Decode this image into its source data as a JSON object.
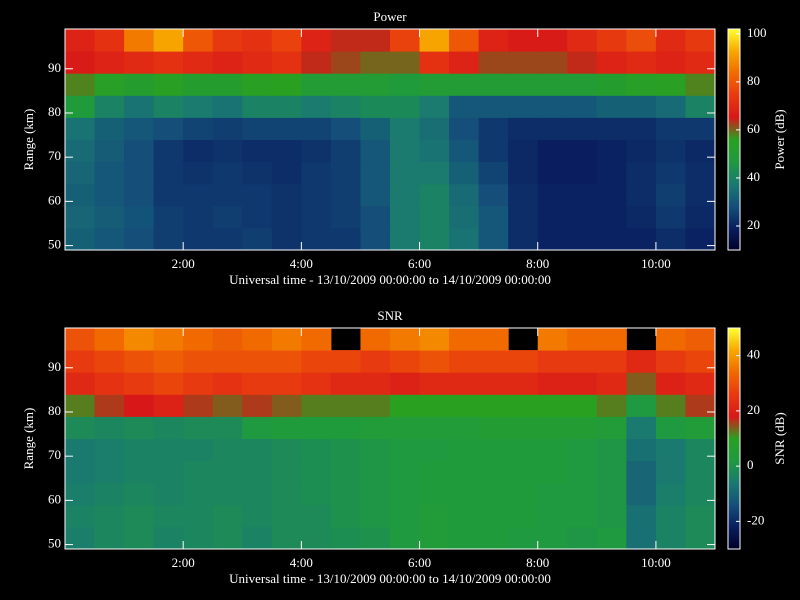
{
  "chart_data": [
    {
      "type": "heatmap",
      "title": "Power",
      "x_label": "Universal time - 13/10/2009 00:00:00 to 14/10/2009 00:00:00",
      "y_label": "Range (km)",
      "x": [
        0.25,
        0.75,
        1.25,
        1.75,
        2.25,
        2.75,
        3.25,
        3.75,
        4.25,
        4.75,
        5.25,
        5.75,
        6.25,
        6.75,
        7.25,
        7.75,
        8.25,
        8.75,
        9.25,
        9.75,
        10.25,
        10.75
      ],
      "y": [
        51.5,
        56.5,
        61.5,
        66.5,
        71.5,
        76.5,
        81.5,
        86.5,
        91.5,
        96.5
      ],
      "z": [
        [
          32,
          30,
          28,
          25,
          24,
          24,
          25,
          23,
          24,
          24,
          28,
          38,
          40,
          36,
          30,
          22,
          20,
          20,
          20,
          20,
          22,
          20
        ],
        [
          33,
          31,
          29,
          25,
          24,
          25,
          24,
          23,
          24,
          25,
          28,
          38,
          40,
          35,
          30,
          22,
          20,
          20,
          20,
          21,
          24,
          21
        ],
        [
          32,
          30,
          28,
          24,
          24,
          24,
          24,
          23,
          24,
          25,
          30,
          38,
          40,
          34,
          28,
          22,
          20,
          20,
          20,
          22,
          25,
          22
        ],
        [
          33,
          30,
          28,
          24,
          23,
          24,
          23,
          22,
          24,
          25,
          30,
          38,
          38,
          32,
          26,
          21,
          19,
          19,
          20,
          22,
          24,
          22
        ],
        [
          34,
          31,
          28,
          24,
          22,
          23,
          22,
          22,
          23,
          25,
          30,
          38,
          36,
          30,
          24,
          21,
          19,
          19,
          20,
          21,
          23,
          21
        ],
        [
          36,
          32,
          30,
          28,
          26,
          25,
          26,
          26,
          26,
          28,
          32,
          38,
          35,
          28,
          24,
          22,
          22,
          22,
          22,
          22,
          24,
          24
        ],
        [
          48,
          40,
          36,
          40,
          38,
          36,
          40,
          40,
          38,
          40,
          42,
          42,
          38,
          30,
          30,
          30,
          30,
          30,
          32,
          32,
          34,
          40
        ],
        [
          58,
          54,
          52,
          55,
          52,
          52,
          55,
          56,
          50,
          50,
          50,
          48,
          50,
          50,
          50,
          50,
          50,
          50,
          52,
          54,
          55,
          58
        ],
        [
          66,
          68,
          70,
          72,
          70,
          68,
          70,
          72,
          64,
          62,
          60,
          60,
          72,
          68,
          62,
          62,
          62,
          64,
          68,
          70,
          68,
          70
        ],
        [
          68,
          72,
          86,
          92,
          80,
          74,
          72,
          76,
          68,
          64,
          64,
          76,
          92,
          80,
          68,
          66,
          66,
          70,
          74,
          78,
          70,
          74
        ]
      ],
      "xlim": [
        0,
        11
      ],
      "xticks": [
        {
          "value": 2,
          "label": "2:00"
        },
        {
          "value": 4,
          "label": "4:00"
        },
        {
          "value": 6,
          "label": "6:00"
        },
        {
          "value": 8,
          "label": "8:00"
        },
        {
          "value": 10,
          "label": "10:00"
        }
      ],
      "ylim": [
        49,
        99
      ],
      "yticks": [
        50,
        60,
        70,
        80,
        90
      ],
      "colorbar": {
        "label": "Power (dB)",
        "clim": [
          10,
          102
        ],
        "ticks": [
          20,
          40,
          60,
          80,
          100
        ]
      },
      "colorscale": [
        "#000028",
        "#0a1e60",
        "#14507a",
        "#1a7a70",
        "#1f9a40",
        "#2aa020",
        "#d81818",
        "#e83a10",
        "#f06a00",
        "#f8a800",
        "#ffff30"
      ]
    },
    {
      "type": "heatmap",
      "title": "SNR",
      "x_label": "Universal time - 13/10/2009 00:00:00 to 14/10/2009 00:00:00",
      "y_label": "Range (km)",
      "x": [
        0.25,
        0.75,
        1.25,
        1.75,
        2.25,
        2.75,
        3.25,
        3.75,
        4.25,
        4.75,
        5.25,
        5.75,
        6.25,
        6.75,
        7.25,
        7.75,
        8.25,
        8.75,
        9.25,
        9.75,
        10.25,
        10.75
      ],
      "y": [
        51.5,
        56.5,
        61.5,
        66.5,
        71.5,
        76.5,
        81.5,
        86.5,
        91.5,
        96.5
      ],
      "z": [
        [
          -5,
          -3,
          -2,
          -4,
          -3,
          -2,
          -4,
          -2,
          -2,
          -1,
          0,
          2,
          4,
          3,
          3,
          2,
          2,
          1,
          2,
          -8,
          -4,
          -2
        ],
        [
          -4,
          -3,
          -2,
          -3,
          -3,
          -2,
          -3,
          -2,
          -2,
          0,
          1,
          2,
          4,
          3,
          3,
          3,
          2,
          2,
          1,
          -8,
          -4,
          -2
        ],
        [
          -5,
          -4,
          -3,
          -4,
          -3,
          -3,
          -3,
          -2,
          -1,
          0,
          1,
          2,
          3,
          3,
          3,
          3,
          2,
          2,
          1,
          -10,
          -5,
          -3
        ],
        [
          -6,
          -5,
          -4,
          -4,
          -3,
          -3,
          -3,
          -2,
          -1,
          0,
          1,
          2,
          3,
          3,
          3,
          3,
          3,
          2,
          1,
          -10,
          -6,
          -3
        ],
        [
          -6,
          -5,
          -4,
          -4,
          -4,
          -3,
          -3,
          -2,
          -1,
          0,
          1,
          2,
          2,
          3,
          3,
          3,
          3,
          2,
          1,
          -8,
          -6,
          -3
        ],
        [
          -2,
          -3,
          -2,
          -3,
          -2,
          -2,
          2,
          3,
          3,
          3,
          4,
          4,
          4,
          4,
          5,
          5,
          5,
          5,
          4,
          -6,
          2,
          4
        ],
        [
          12,
          16,
          18,
          20,
          16,
          14,
          16,
          14,
          12,
          12,
          12,
          10,
          10,
          10,
          10,
          10,
          10,
          10,
          12,
          2,
          12,
          16
        ],
        [
          22,
          24,
          26,
          28,
          26,
          24,
          26,
          26,
          24,
          22,
          22,
          20,
          22,
          22,
          22,
          22,
          20,
          20,
          22,
          14,
          20,
          22
        ],
        [
          26,
          28,
          30,
          32,
          30,
          30,
          30,
          30,
          28,
          28,
          26,
          28,
          30,
          28,
          28,
          28,
          26,
          26,
          26,
          22,
          26,
          28
        ],
        [
          30,
          34,
          38,
          36,
          34,
          32,
          34,
          36,
          34,
          null,
          34,
          36,
          38,
          34,
          34,
          null,
          36,
          34,
          34,
          null,
          34,
          32
        ]
      ],
      "xlim": [
        0,
        11
      ],
      "xticks": [
        {
          "value": 2,
          "label": "2:00"
        },
        {
          "value": 4,
          "label": "4:00"
        },
        {
          "value": 6,
          "label": "6:00"
        },
        {
          "value": 8,
          "label": "8:00"
        },
        {
          "value": 10,
          "label": "10:00"
        }
      ],
      "ylim": [
        49,
        99
      ],
      "yticks": [
        50,
        60,
        70,
        80,
        90
      ],
      "colorbar": {
        "label": "SNR (dB)",
        "clim": [
          -30,
          50
        ],
        "ticks": [
          -20,
          0,
          20,
          40
        ]
      },
      "colorscale": [
        "#000028",
        "#0a1e60",
        "#14507a",
        "#1a7a70",
        "#1f9a40",
        "#2aa020",
        "#d81818",
        "#e83a10",
        "#f06a00",
        "#f8a800",
        "#ffff30"
      ]
    }
  ]
}
